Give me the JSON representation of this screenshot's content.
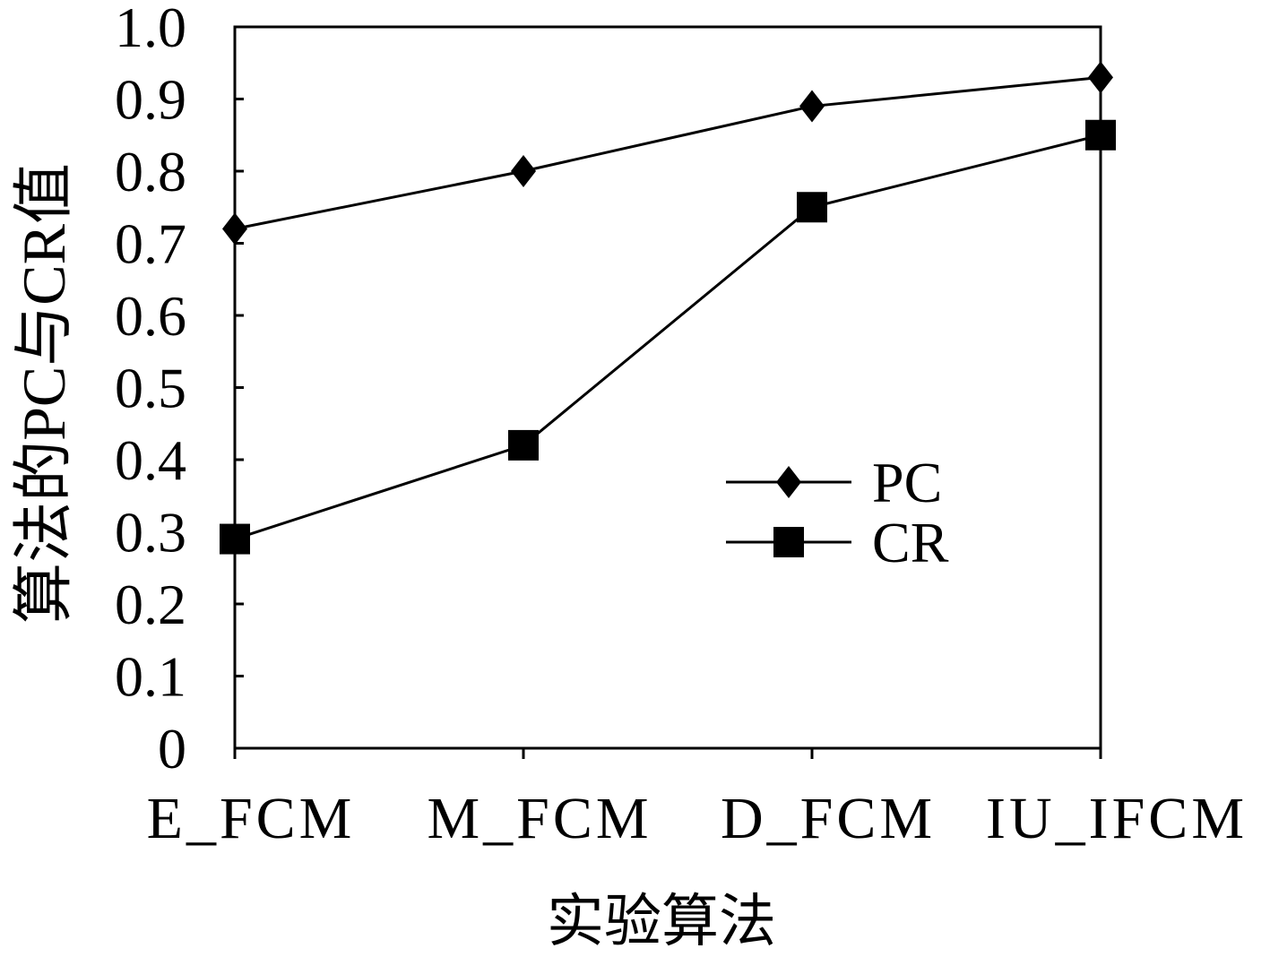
{
  "chart_data": {
    "type": "line",
    "categories": [
      "E_FCM",
      "M_FCM",
      "D_FCM",
      "IU_IFCM"
    ],
    "series": [
      {
        "name": "PC",
        "marker": "diamond",
        "color": "#000000",
        "values": [
          0.72,
          0.8,
          0.89,
          0.93
        ]
      },
      {
        "name": "CR",
        "marker": "square",
        "color": "#000000",
        "values": [
          0.29,
          0.42,
          0.75,
          0.85
        ]
      }
    ],
    "xlabel": "实验算法",
    "ylabel": "算法的PC与CR值",
    "ylim": [
      0,
      1.0
    ],
    "yticks": [
      0,
      0.1,
      0.2,
      0.3,
      0.4,
      0.5,
      0.6,
      0.7,
      0.8,
      0.9,
      1.0
    ],
    "ytick_labels": [
      "0",
      "0.1",
      "0.2",
      "0.3",
      "0.4",
      "0.5",
      "0.6",
      "0.7",
      "0.8",
      "0.9",
      "1.0"
    ],
    "grid": false,
    "legend_position": "center-right"
  }
}
